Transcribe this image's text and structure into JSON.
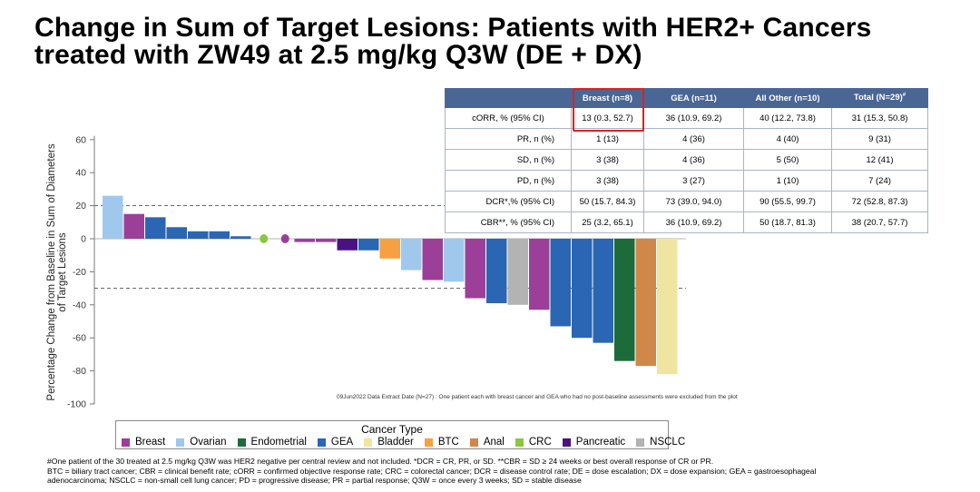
{
  "title": {
    "line1": "Change in Sum of Target Lesions: Patients with HER2+ Cancers",
    "line2": "treated with ZW49 at 2.5 mg/kg Q3W (DE + DX)"
  },
  "chart_data": {
    "type": "bar",
    "ylabel_line1": "Percentage Change from Baseline in Sum of Diameters",
    "ylabel_line2": "of Target Lesions",
    "ylim": [
      -100,
      60
    ],
    "yticks": [
      60,
      40,
      20,
      0,
      -20,
      -40,
      -60,
      -80,
      -100
    ],
    "reference_lines": [
      20,
      -30
    ],
    "colors": {
      "Breast": "#9b3f98",
      "Ovarian": "#9fc8ec",
      "Endometrial": "#1c6b3a",
      "GEA": "#2a66b3",
      "Bladder": "#efe5a0",
      "BTC": "#f5a142",
      "Anal": "#d0874a",
      "CRC": "#8dc63f",
      "Pancreatic": "#4a1280",
      "NSCLC": "#b3b3b3"
    },
    "bars": [
      {
        "type": "Ovarian",
        "value": 26
      },
      {
        "type": "Breast",
        "value": 15
      },
      {
        "type": "GEA",
        "value": 13
      },
      {
        "type": "GEA",
        "value": 7
      },
      {
        "type": "GEA",
        "value": 4.5
      },
      {
        "type": "GEA",
        "value": 4.5
      },
      {
        "type": "GEA",
        "value": 1.5
      },
      {
        "type": "CRC",
        "value": 0
      },
      {
        "type": "Breast",
        "value": 0
      },
      {
        "type": "Breast",
        "value": -2
      },
      {
        "type": "Breast",
        "value": -2
      },
      {
        "type": "Pancreatic",
        "value": -7
      },
      {
        "type": "GEA",
        "value": -7
      },
      {
        "type": "BTC",
        "value": -12
      },
      {
        "type": "Ovarian",
        "value": -19
      },
      {
        "type": "Breast",
        "value": -25
      },
      {
        "type": "Ovarian",
        "value": -26
      },
      {
        "type": "Breast",
        "value": -36
      },
      {
        "type": "GEA",
        "value": -39
      },
      {
        "type": "NSCLC",
        "value": -40
      },
      {
        "type": "Breast",
        "value": -43
      },
      {
        "type": "GEA",
        "value": -53
      },
      {
        "type": "GEA",
        "value": -60
      },
      {
        "type": "GEA",
        "value": -63
      },
      {
        "type": "Endometrial",
        "value": -74
      },
      {
        "type": "Anal",
        "value": -77
      },
      {
        "type": "Bladder",
        "value": -82
      }
    ]
  },
  "table": {
    "headers": [
      "",
      "Breast (n=8)",
      "GEA (n=11)",
      "All Other (n=10)",
      "Total (N=29)#"
    ],
    "rows": [
      [
        "cORR, % (95% CI)",
        "13 (0.3, 52.7)",
        "36 (10.9, 69.2)",
        "40 (12.2, 73.8)",
        "31 (15.3, 50.8)"
      ],
      [
        "PR, n (%)",
        "1 (13)",
        "4 (36)",
        "4 (40)",
        "9 (31)"
      ],
      [
        "SD, n (%)",
        "3 (38)",
        "4 (36)",
        "5 (50)",
        "12 (41)"
      ],
      [
        "PD, n (%)",
        "3 (38)",
        "3 (27)",
        "1 (10)",
        "7 (24)"
      ],
      [
        "DCR*,% (95% CI)",
        "50 (15.7, 84.3)",
        "73 (39.0, 94.0)",
        "90 (55.5, 99.7)",
        "72 (52.8, 87.3)"
      ],
      [
        "CBR**, % (95% CI)",
        "25 (3.2, 65.1)",
        "36 (10.9, 69.2)",
        "50 (18.7, 81.3)",
        "38 (20.7, 57.7)"
      ]
    ]
  },
  "legend": {
    "title": "Cancer Type",
    "items": [
      "Breast",
      "Ovarian",
      "Endometrial",
      "GEA",
      "Bladder",
      "BTC",
      "Anal",
      "CRC",
      "Pancreatic",
      "NSCLC"
    ]
  },
  "note": "09Jun2022 Data Extract Date (N=27) : One patient each with breast cancer and GEA who had no post-baseline assessments were excluded from the plot",
  "footnotes": {
    "line1": "#One patient of the 30 treated at 2.5 mg/kg Q3W was HER2 negative per central review and not included. *DCR = CR, PR, or SD. **CBR = SD ≥ 24 weeks or best overall response of CR or PR.",
    "line2": "BTC = biliary tract cancer; CBR = clinical benefit rate; cORR = confirmed objective response rate; CRC = colorectal cancer; DCR = disease control rate; DE = dose escalation; DX = dose expansion; GEA = gastroesophageal",
    "line3": "adenocarcinoma; NSCLC = non-small cell lung cancer; PD = progressive disease; PR = partial response; Q3W = once every 3 weeks; SD = stable disease"
  }
}
